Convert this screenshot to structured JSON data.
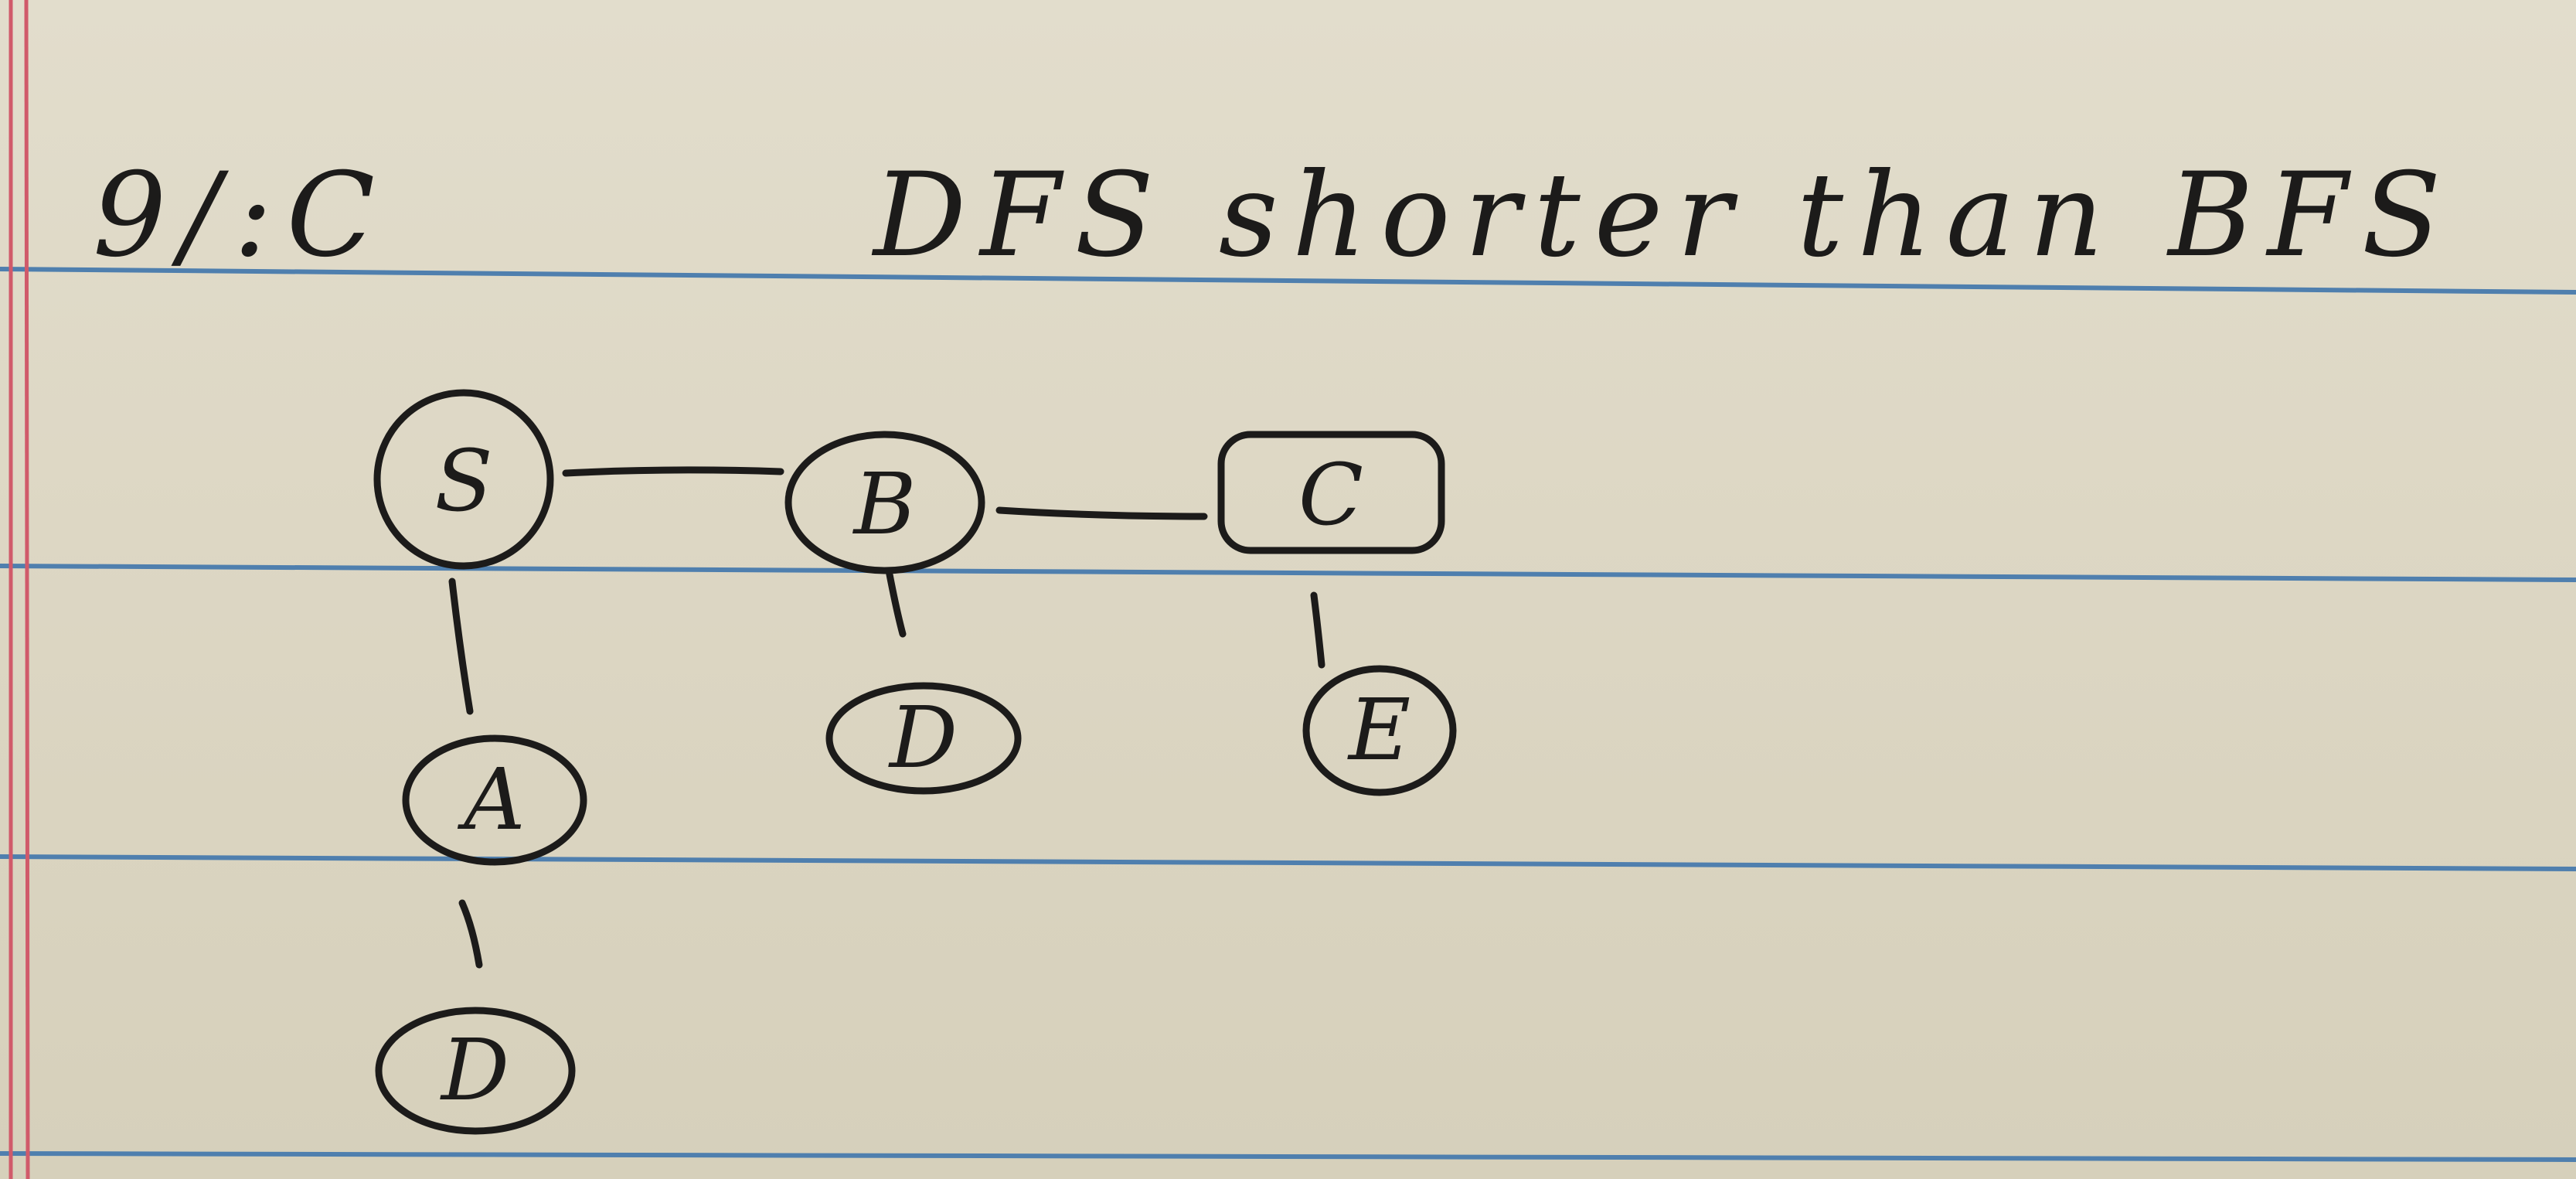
{
  "header": {
    "question": "9/:C",
    "claim": "DFS shorter than BFS"
  },
  "graph": {
    "nodes": [
      {
        "id": "S",
        "label": "S",
        "shape": "circle"
      },
      {
        "id": "B",
        "label": "B",
        "shape": "circle"
      },
      {
        "id": "C",
        "label": "C",
        "shape": "rounded-square"
      },
      {
        "id": "A",
        "label": "A",
        "shape": "circle"
      },
      {
        "id": "D1",
        "label": "D",
        "shape": "circle"
      },
      {
        "id": "E",
        "label": "E",
        "shape": "circle"
      },
      {
        "id": "D2",
        "label": "D",
        "shape": "circle"
      }
    ],
    "edges": [
      {
        "from": "S",
        "to": "B"
      },
      {
        "from": "B",
        "to": "C"
      },
      {
        "from": "S",
        "to": "A"
      },
      {
        "from": "A",
        "to": "D2"
      },
      {
        "from": "B",
        "to": "D1"
      },
      {
        "from": "C",
        "to": "E"
      }
    ]
  },
  "colors": {
    "paper": "#ddd7c4",
    "rule_line": "#4f7fae",
    "margin_line": "#d05a6a",
    "ink": "#1c1b1a"
  }
}
